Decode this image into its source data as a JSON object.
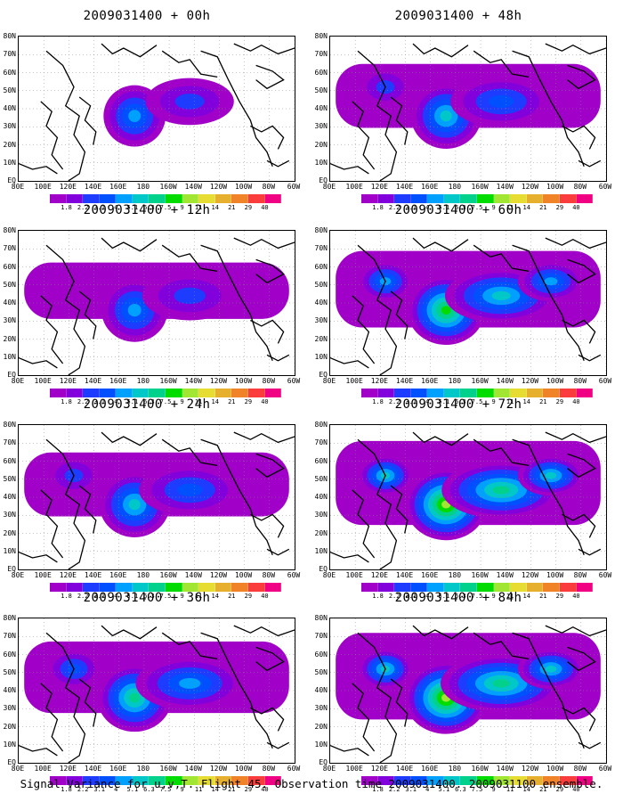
{
  "panels": [
    {
      "title": "2009031400 + 00h",
      "intensity": 0.25
    },
    {
      "title": "2009031400 + 12h",
      "intensity": 0.4
    },
    {
      "title": "2009031400 + 24h",
      "intensity": 0.55
    },
    {
      "title": "2009031400 + 36h",
      "intensity": 0.7
    },
    {
      "title": "2009031400 + 48h",
      "intensity": 0.55
    },
    {
      "title": "2009031400 + 60h",
      "intensity": 0.8
    },
    {
      "title": "2009031400 + 72h",
      "intensity": 0.95
    },
    {
      "title": "2009031400 + 84h",
      "intensity": 1.0
    }
  ],
  "y_labels": [
    "80N",
    "70N",
    "60N",
    "50N",
    "40N",
    "30N",
    "20N",
    "10N",
    "EQ"
  ],
  "x_labels": [
    "80E",
    "100E",
    "120E",
    "140E",
    "160E",
    "180",
    "160W",
    "140W",
    "120W",
    "100W",
    "80W",
    "60W"
  ],
  "colorbar": {
    "labels": [
      "1.8",
      "2.2",
      "3.1",
      "4",
      "5.1",
      "6.3",
      "7.5",
      "9",
      "11",
      "14",
      "21",
      "29",
      "40"
    ],
    "colors": [
      "#a000c8",
      "#8200dc",
      "#1e3cff",
      "#0050ff",
      "#00a0ff",
      "#00c8c8",
      "#00d28c",
      "#00dc00",
      "#a0e632",
      "#e6dc32",
      "#e6af2d",
      "#f08228",
      "#fa3c3c",
      "#f00082"
    ]
  },
  "caption": "Signal Variance for u,v,T. Flight 45. Observation time 2009031400. 2009031100 ensemble."
}
